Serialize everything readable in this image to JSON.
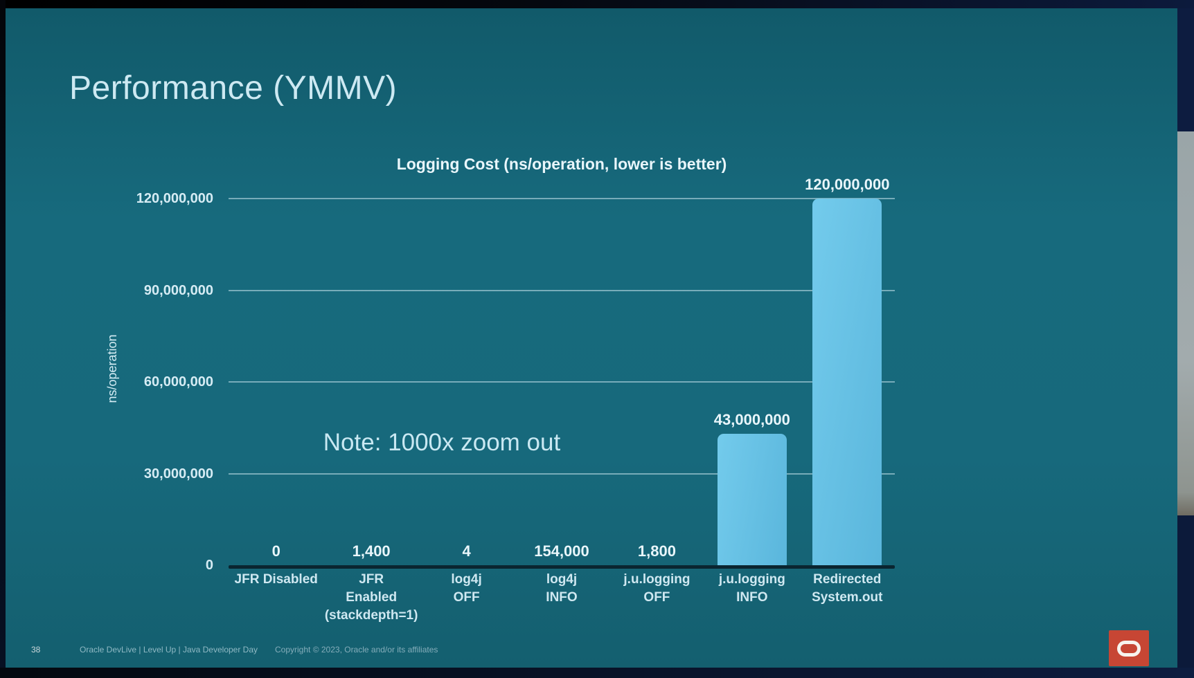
{
  "slide": {
    "title": "Performance (YMMV)",
    "footer": {
      "page_number": "38",
      "event": "Oracle DevLive | Level Up | Java Developer Day",
      "copyright": "Copyright © 2023, Oracle and/or its affiliates"
    }
  },
  "chart_data": {
    "type": "bar",
    "title": "Logging Cost (ns/operation, lower is better)",
    "xlabel": "",
    "ylabel": "ns/operation",
    "ylim": [
      0,
      120000000
    ],
    "yticks": [
      0,
      30000000,
      60000000,
      90000000,
      120000000
    ],
    "ytick_labels": [
      "0",
      "30,000,000",
      "60,000,000",
      "90,000,000",
      "120,000,000"
    ],
    "grid": true,
    "legend": "none",
    "categories": [
      "JFR Disabled",
      "JFR Enabled (stackdepth=1)",
      "log4j OFF",
      "log4j INFO",
      "j.u.logging OFF",
      "j.u.logging INFO",
      "Redirected System.out"
    ],
    "category_label_lines": [
      [
        "JFR Disabled"
      ],
      [
        "JFR",
        "Enabled",
        "(stackdepth=1)"
      ],
      [
        "log4j",
        "OFF"
      ],
      [
        "log4j",
        "INFO"
      ],
      [
        "j.u.logging",
        "OFF"
      ],
      [
        "j.u.logging",
        "INFO"
      ],
      [
        "Redirected",
        "System.out"
      ]
    ],
    "values": [
      0,
      1400,
      4,
      154000,
      1800,
      43000000,
      120000000
    ],
    "value_labels": [
      "0",
      "1,400",
      "4",
      "154,000",
      "1,800",
      "43,000,000",
      "120,000,000"
    ],
    "annotation": "Note: 1000x zoom out",
    "bar_color": "#65c1e4"
  },
  "colors": {
    "oracle_red": "#c74634",
    "bar": "#65c1e4",
    "slide_teal": "#17697c",
    "text_light": "#d5ecf4"
  }
}
